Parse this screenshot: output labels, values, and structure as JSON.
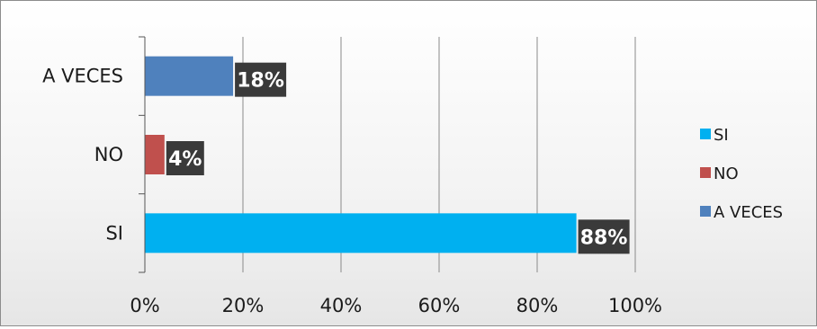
{
  "chart_data": {
    "type": "bar",
    "orientation": "horizontal",
    "categories": [
      "SI",
      "NO",
      "A VECES"
    ],
    "values": [
      88,
      4,
      18
    ],
    "value_labels": [
      "88%",
      "4%",
      "18%"
    ],
    "colors": [
      "#00b0f0",
      "#c0504d",
      "#4f81bd"
    ],
    "x_ticks": [
      "0%",
      "20%",
      "40%",
      "60%",
      "80%",
      "100%"
    ],
    "xlim": [
      0,
      100
    ],
    "grid": true,
    "legend": {
      "placement": "right",
      "entries": [
        "SI",
        "NO",
        "A VECES"
      ]
    },
    "title": "",
    "xlabel": "",
    "ylabel": ""
  }
}
